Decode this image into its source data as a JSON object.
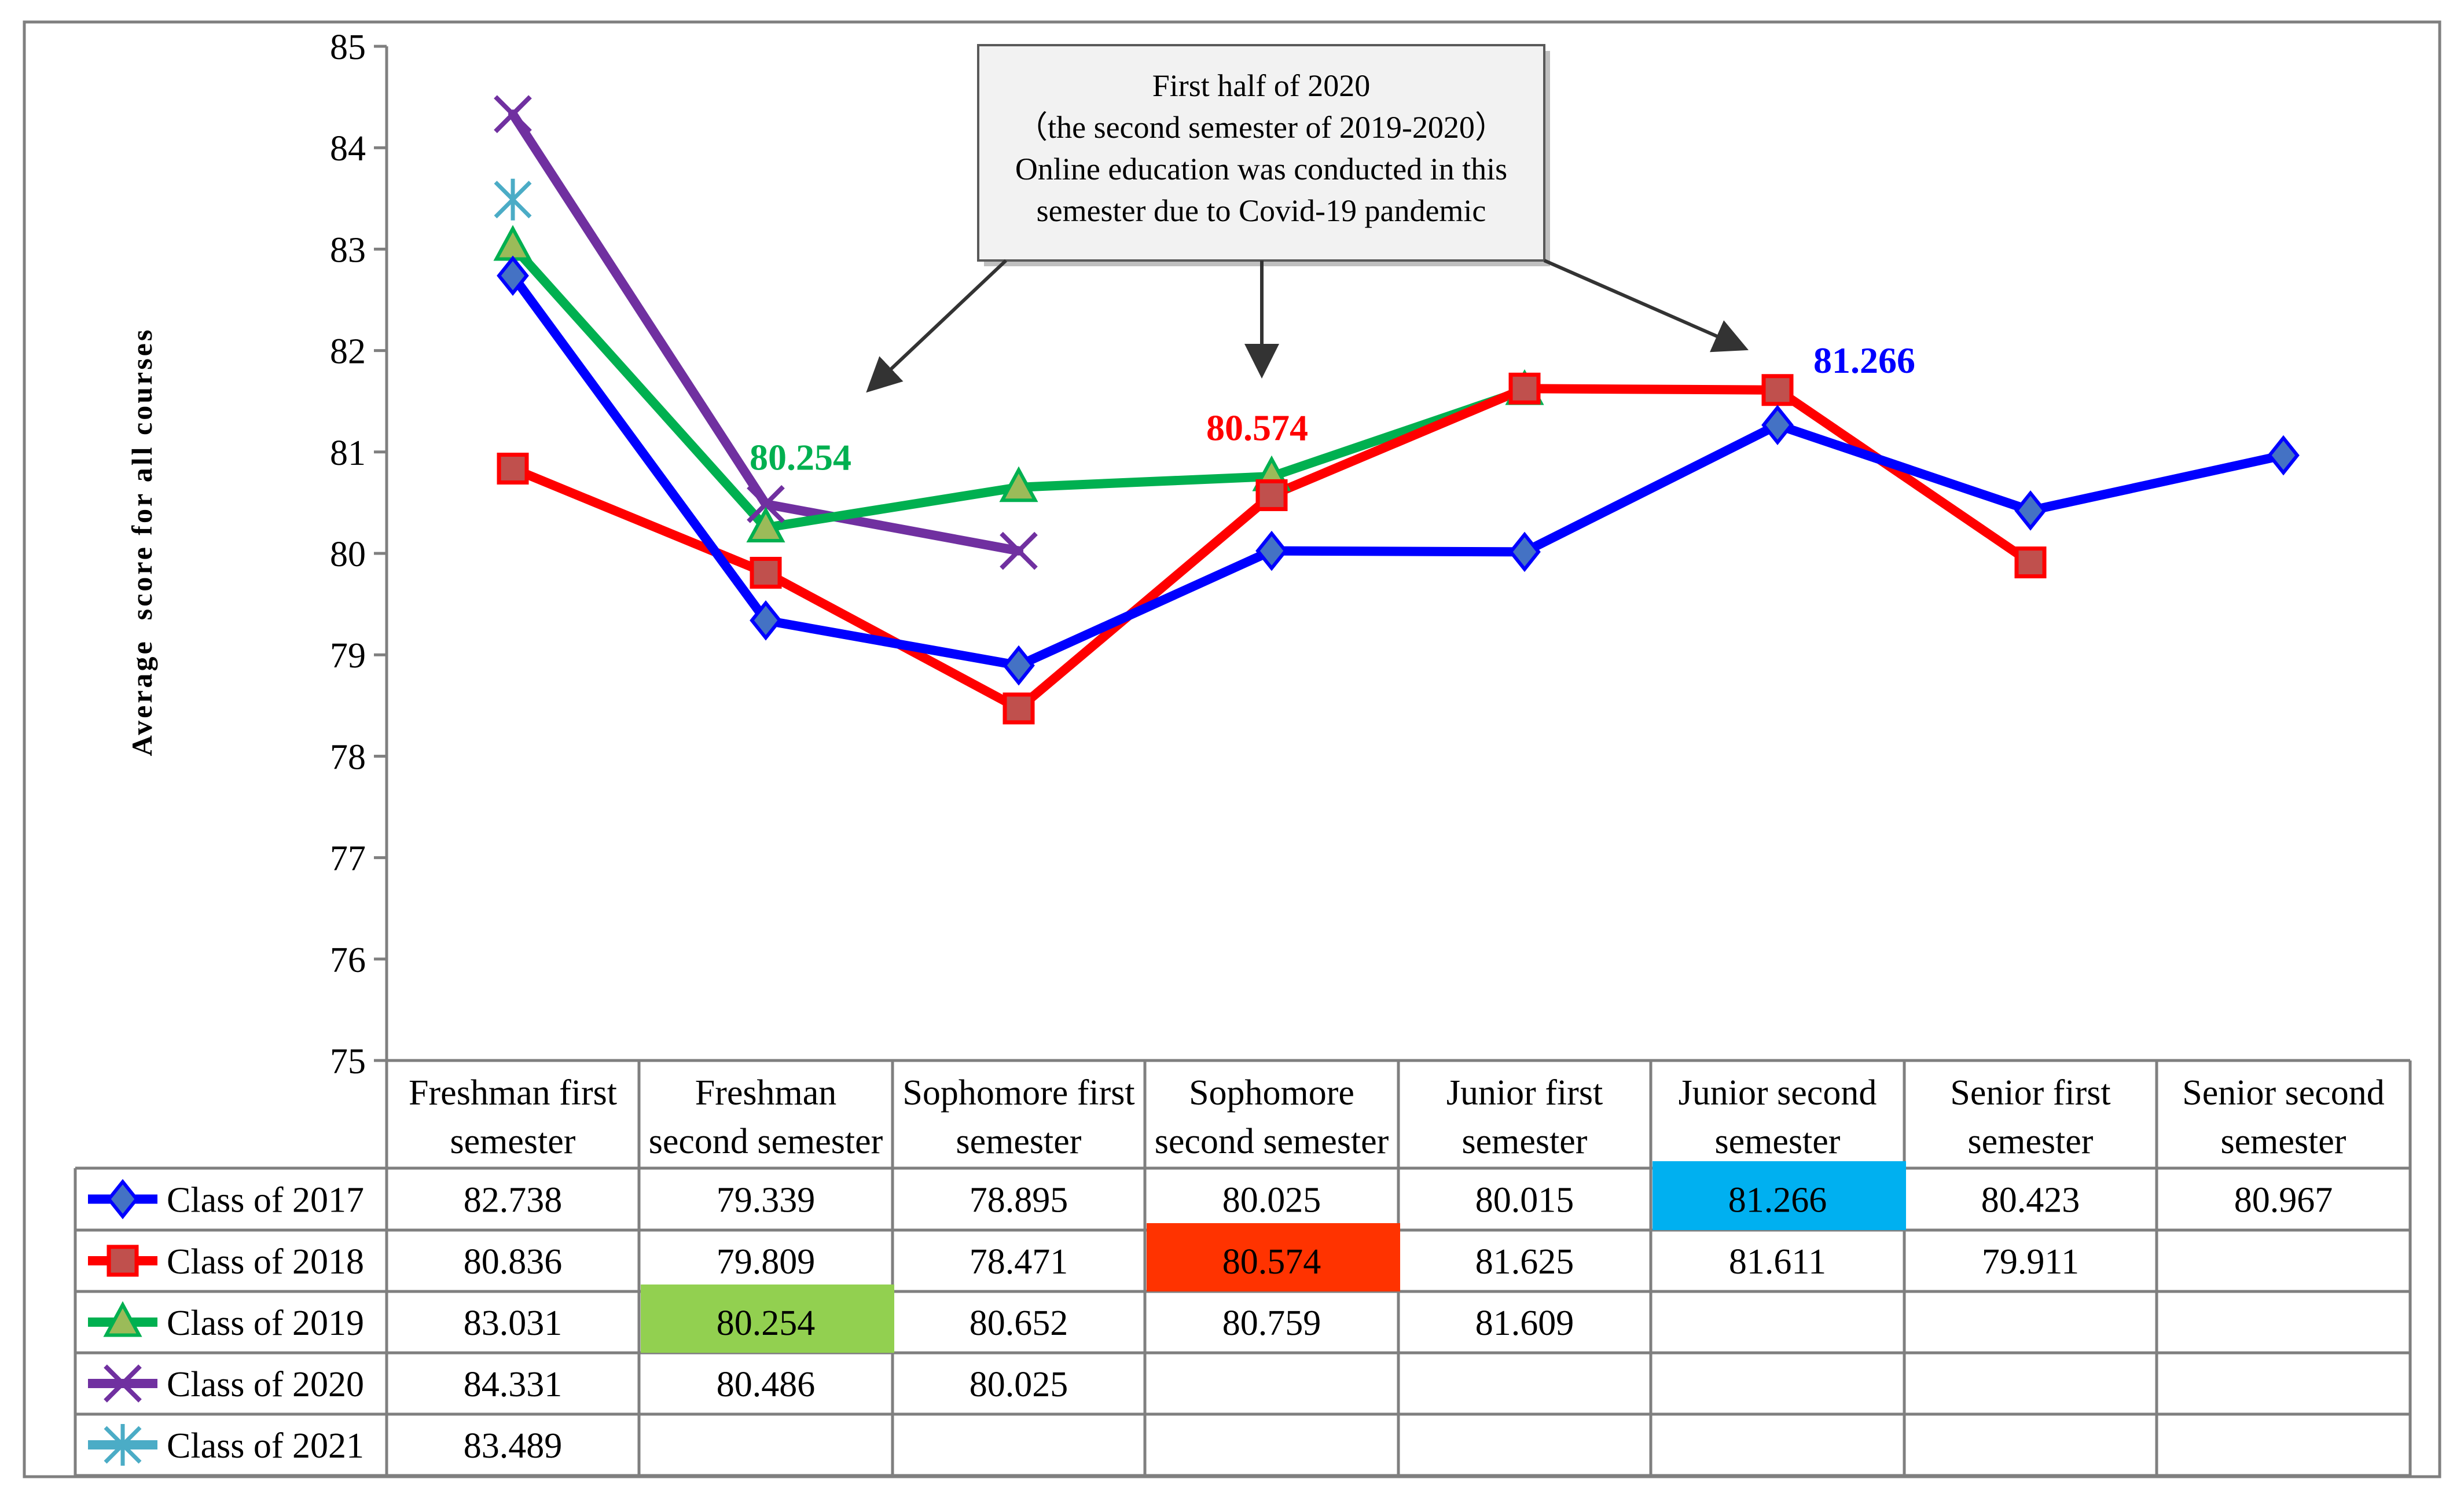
{
  "chart_data": {
    "type": "line",
    "ylabel": "Average  score for all courses",
    "ylim": [
      75,
      85
    ],
    "yticks": [
      75,
      76,
      77,
      78,
      79,
      80,
      81,
      82,
      83,
      84,
      85
    ],
    "grid": false,
    "categories": [
      "Freshman first semester",
      "Freshman second semester",
      "Sophomore first semester",
      "Sophomore second semester",
      "Junior first semester",
      "Junior second semester",
      "Senior first semester",
      "Senior second semester"
    ],
    "category_lines": [
      [
        "Freshman first",
        "semester"
      ],
      [
        "Freshman",
        "second semester"
      ],
      [
        "Sophomore first",
        "semester"
      ],
      [
        "Sophomore",
        "second semester"
      ],
      [
        "Junior first",
        "semester"
      ],
      [
        "Junior second",
        "semester"
      ],
      [
        "Senior first",
        "semester"
      ],
      [
        "Senior second",
        "semester"
      ]
    ],
    "series": [
      {
        "name": "Class of 2017",
        "color": "#0000ff",
        "marker": "diamond",
        "values": [
          82.738,
          79.339,
          78.895,
          80.025,
          80.015,
          81.266,
          80.423,
          80.967
        ],
        "labels": [
          "82.738",
          "79.339",
          "78.895",
          "80.025",
          "80.015",
          "81.266",
          "80.423",
          "80.967"
        ]
      },
      {
        "name": "Class of 2018",
        "color": "#ff0000",
        "marker": "square",
        "values": [
          80.836,
          79.809,
          78.471,
          80.574,
          81.625,
          81.611,
          79.911,
          null
        ],
        "labels": [
          "80.836",
          "79.809",
          "78.471",
          "80.574",
          "81.625",
          "81.611",
          "79.911",
          ""
        ]
      },
      {
        "name": "Class of 2019",
        "color": "#00b050",
        "marker": "triangle",
        "values": [
          83.031,
          80.254,
          80.652,
          80.759,
          81.609,
          null,
          null,
          null
        ],
        "labels": [
          "83.031",
          "80.254",
          "80.652",
          "80.759",
          "81.609",
          "",
          "",
          ""
        ]
      },
      {
        "name": "Class of 2020",
        "color": "#7030a0",
        "marker": "x",
        "values": [
          84.331,
          80.486,
          80.025,
          null,
          null,
          null,
          null,
          null
        ],
        "labels": [
          "84.331",
          "80.486",
          "80.025",
          "",
          "",
          "",
          "",
          ""
        ]
      },
      {
        "name": "Class of 2021",
        "color": "#4bacc6",
        "marker": "asterisk",
        "values": [
          83.489,
          null,
          null,
          null,
          null,
          null,
          null,
          null
        ],
        "labels": [
          "83.489",
          "",
          "",
          "",
          "",
          "",
          "",
          ""
        ]
      }
    ],
    "highlights": [
      {
        "series": 0,
        "category": 5,
        "color": "#00b0f0",
        "label": "81.266"
      },
      {
        "series": 1,
        "category": 3,
        "color": "#ff3300",
        "label": "80.574"
      },
      {
        "series": 2,
        "category": 1,
        "color": "#92d050",
        "label": "80.254"
      }
    ],
    "annotation": {
      "lines": [
        "First half of 2020",
        "（the second semester of 2019-2020）",
        "Online education was conducted in this",
        "semester due to Covid-19 pandemic"
      ],
      "arrow_targets": [
        1,
        3,
        5
      ]
    }
  }
}
